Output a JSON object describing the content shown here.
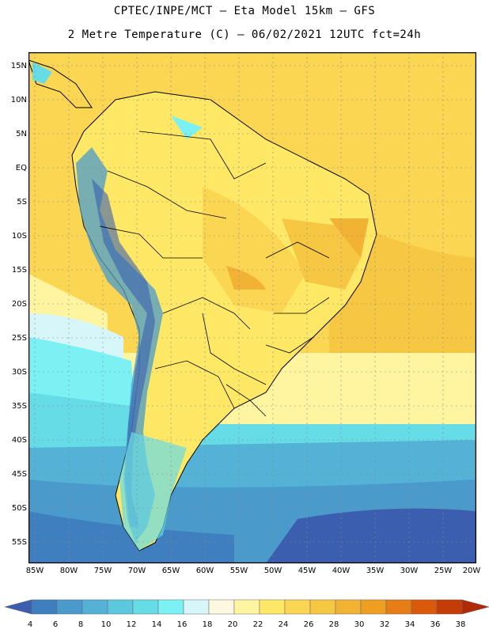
{
  "header": {
    "line1": "CPTEC/INPE/MCT –  Eta Model 15km – GFS",
    "line2": "2 Metre Temperature (C) – 06/02/2021 12UTC fct=24h"
  },
  "map": {
    "lat_ticks": [
      "15N",
      "10N",
      "5N",
      "EQ",
      "5S",
      "10S",
      "15S",
      "20S",
      "25S",
      "30S",
      "35S",
      "40S",
      "45S",
      "50S",
      "55S"
    ],
    "lon_ticks": [
      "85W",
      "80W",
      "75W",
      "70W",
      "65W",
      "60W",
      "55W",
      "50W",
      "45W",
      "40W",
      "35W",
      "30W",
      "25W",
      "20W"
    ],
    "extent": {
      "west": -86,
      "east": -20,
      "north": 17,
      "south": -58
    }
  },
  "legend": {
    "values": [
      "4",
      "6",
      "8",
      "10",
      "12",
      "14",
      "16",
      "18",
      "20",
      "22",
      "24",
      "26",
      "28",
      "30",
      "32",
      "34",
      "36",
      "38"
    ],
    "colors": [
      "#3b5fae",
      "#3f7fbf",
      "#4a9bcb",
      "#53b2d6",
      "#5cc8dd",
      "#66dce6",
      "#7cf1f4",
      "#d6f6fa",
      "#fff8e1",
      "#fff5a0",
      "#ffe866",
      "#fbd652",
      "#f6c743",
      "#f2b335",
      "#ee9e23",
      "#e77d16",
      "#d85a0a",
      "#c43d06",
      "#b02a06"
    ]
  }
}
